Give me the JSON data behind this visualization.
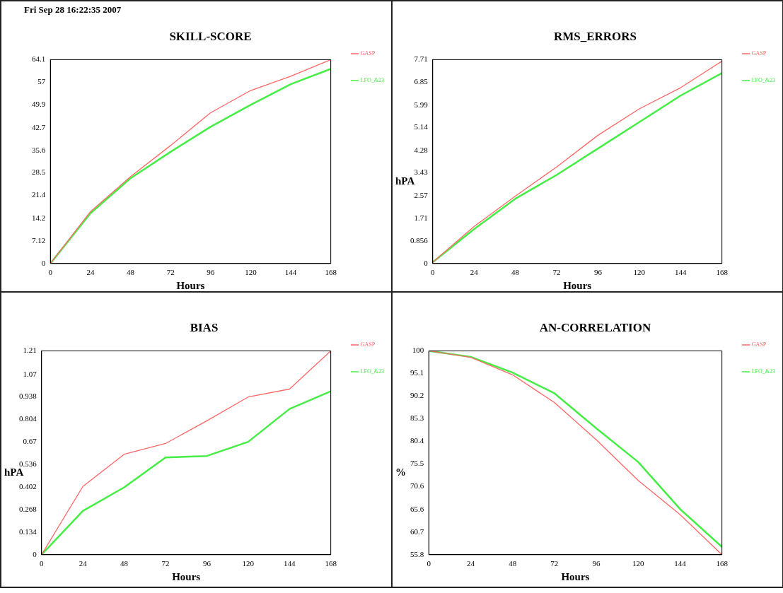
{
  "chart_data": [
    {
      "type": "line",
      "title": "SKILL-SCORE",
      "xlabel": "Hours",
      "annotations": [
        "Fri Sep 28 16:22:35 2007"
      ],
      "x": [
        0,
        24,
        48,
        72,
        96,
        120,
        144,
        168
      ],
      "xlim": [
        0,
        168
      ],
      "xticks": [
        0,
        24,
        48,
        72,
        96,
        120,
        144,
        168
      ],
      "ylim": [
        0,
        64.1
      ],
      "yticks": [
        0,
        7.12,
        14.2,
        21.4,
        28.5,
        35.6,
        42.7,
        49.9,
        57,
        64.1
      ],
      "grid": false,
      "legend": "right",
      "marker": "none",
      "line_style": "solid",
      "series": [
        {
          "name": "GASP",
          "color": "#ff6666",
          "values": [
            0,
            16.3,
            27.3,
            37.1,
            47.4,
            54.4,
            58.9,
            64.1
          ]
        },
        {
          "name": "LFO_&23",
          "color": "#44ee44",
          "values": [
            0,
            15.8,
            26.8,
            35.1,
            43,
            49.9,
            56.4,
            61.2
          ]
        }
      ]
    },
    {
      "type": "line",
      "title": "RMS_ERRORS",
      "xlabel": "Hours",
      "ylabel": "hPA",
      "x": [
        0,
        24,
        48,
        72,
        96,
        120,
        144,
        168
      ],
      "xlim": [
        0,
        168
      ],
      "xticks": [
        0,
        24,
        48,
        72,
        96,
        120,
        144,
        168
      ],
      "ylim": [
        0,
        7.71
      ],
      "yticks": [
        0,
        0.856,
        1.71,
        2.57,
        3.43,
        4.28,
        5.14,
        5.99,
        6.85,
        7.71
      ],
      "grid": false,
      "legend": "right",
      "marker": "none",
      "line_style": "solid",
      "series": [
        {
          "name": "GASP",
          "color": "#ff6666",
          "values": [
            0.05,
            1.4,
            2.55,
            3.65,
            4.85,
            5.85,
            6.65,
            7.65
          ]
        },
        {
          "name": "LFO_&23",
          "color": "#44ee44",
          "values": [
            0.05,
            1.3,
            2.45,
            3.35,
            4.35,
            5.35,
            6.35,
            7.2
          ]
        }
      ]
    },
    {
      "type": "line",
      "title": "BIAS",
      "xlabel": "Hours",
      "ylabel": "hPA",
      "x": [
        0,
        24,
        48,
        72,
        96,
        120,
        144,
        168
      ],
      "xlim": [
        0,
        168
      ],
      "xticks": [
        0,
        24,
        48,
        72,
        96,
        120,
        144,
        168
      ],
      "ylim": [
        0,
        1.21
      ],
      "yticks": [
        0,
        0.134,
        0.268,
        0.402,
        0.536,
        0.67,
        0.804,
        0.938,
        1.07,
        1.21
      ],
      "grid": false,
      "legend": "right",
      "marker": "none",
      "line_style": "solid",
      "series": [
        {
          "name": "GASP",
          "color": "#ff6666",
          "values": [
            0,
            0.405,
            0.596,
            0.66,
            0.795,
            0.936,
            0.983,
            1.21
          ]
        },
        {
          "name": "LFO_&23",
          "color": "#44ee44",
          "values": [
            0,
            0.26,
            0.4,
            0.577,
            0.586,
            0.67,
            0.865,
            0.97
          ]
        }
      ]
    },
    {
      "type": "line",
      "title": "AN-CORRELATION",
      "xlabel": "Hours",
      "ylabel": "%",
      "x": [
        0,
        24,
        48,
        72,
        96,
        120,
        144,
        168
      ],
      "xlim": [
        0,
        168
      ],
      "xticks": [
        0,
        24,
        48,
        72,
        96,
        120,
        144,
        168
      ],
      "ylim": [
        55.8,
        100
      ],
      "yticks": [
        55.8,
        60.7,
        65.6,
        70.6,
        75.5,
        80.4,
        85.3,
        90.2,
        95.1,
        100
      ],
      "grid": false,
      "legend": "right",
      "marker": "none",
      "line_style": "solid",
      "series": [
        {
          "name": "GASP",
          "color": "#ff6666",
          "values": [
            100,
            98.6,
            94.8,
            88.8,
            80.7,
            71.9,
            64.5,
            55.8
          ]
        },
        {
          "name": "LFO_&23",
          "color": "#44ee44",
          "values": [
            100,
            98.7,
            95.3,
            90.8,
            83.2,
            75.9,
            65.7,
            57.5
          ]
        }
      ]
    }
  ]
}
